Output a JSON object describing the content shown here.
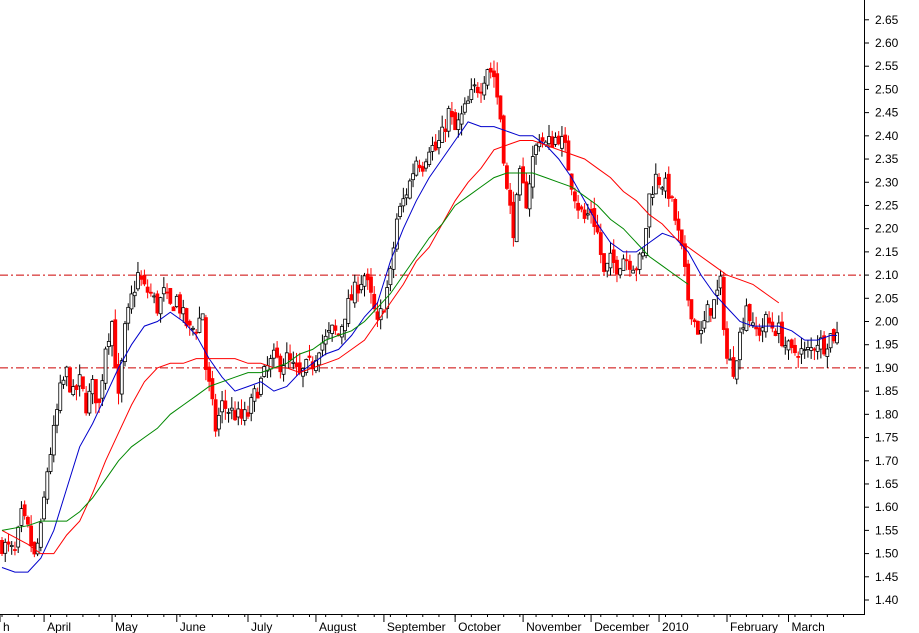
{
  "chart_data": {
    "type": "candlestick",
    "title": "",
    "xlabel": "",
    "ylabel": "",
    "ylim": [
      1.37,
      2.69
    ],
    "y_ticks": [
      1.4,
      1.45,
      1.5,
      1.55,
      1.6,
      1.65,
      1.7,
      1.75,
      1.8,
      1.85,
      1.9,
      1.95,
      2.0,
      2.05,
      2.1,
      2.15,
      2.2,
      2.25,
      2.3,
      2.35,
      2.4,
      2.45,
      2.5,
      2.55,
      2.6,
      2.65
    ],
    "y_tick_labels": [
      "1.40",
      "1.45",
      "1.50",
      "1.55",
      "1.60",
      "1.65",
      "1.70",
      "1.75",
      "1.80",
      "1.85",
      "1.90",
      "1.95",
      "2.00",
      "2.05",
      "2.10",
      "2.15",
      "2.20",
      "2.25",
      "2.30",
      "2.35",
      "2.40",
      "2.45",
      "2.50",
      "2.55",
      "2.60",
      "2.65"
    ],
    "month_labels": [
      {
        "label": "h",
        "day": 0
      },
      {
        "label": "April",
        "day": 13
      },
      {
        "label": "May",
        "day": 34
      },
      {
        "label": "June",
        "day": 54
      },
      {
        "label": "July",
        "day": 76
      },
      {
        "label": "August",
        "day": 97
      },
      {
        "label": "September",
        "day": 118
      },
      {
        "label": "October",
        "day": 140
      },
      {
        "label": "November",
        "day": 161
      },
      {
        "label": "December",
        "day": 182
      },
      {
        "label": "2010",
        "day": 203
      },
      {
        "label": "February",
        "day": 224
      },
      {
        "label": "March",
        "day": 243
      }
    ],
    "x_range": [
      0,
      262
    ],
    "horizontal_lines": [
      {
        "value": 2.1,
        "color": "#cc0000",
        "style": "dash-dot"
      },
      {
        "value": 1.9,
        "color": "#cc0000",
        "style": "dash-dot"
      }
    ],
    "up_color": "#000000",
    "down_color": "#ff0000",
    "price_points": [
      [
        0,
        1.52
      ],
      [
        4,
        1.5
      ],
      [
        6,
        1.58
      ],
      [
        8,
        1.55
      ],
      [
        10,
        1.49
      ],
      [
        12,
        1.55
      ],
      [
        14,
        1.68
      ],
      [
        16,
        1.76
      ],
      [
        18,
        1.85
      ],
      [
        20,
        1.89
      ],
      [
        22,
        1.84
      ],
      [
        24,
        1.87
      ],
      [
        26,
        1.82
      ],
      [
        28,
        1.86
      ],
      [
        30,
        1.82
      ],
      [
        32,
        1.95
      ],
      [
        34,
        2.0
      ],
      [
        36,
        1.83
      ],
      [
        38,
        1.98
      ],
      [
        40,
        2.05
      ],
      [
        42,
        2.1
      ],
      [
        44,
        2.07
      ],
      [
        46,
        2.06
      ],
      [
        48,
        2.03
      ],
      [
        50,
        2.06
      ],
      [
        52,
        2.03
      ],
      [
        54,
        2.05
      ],
      [
        56,
        2.01
      ],
      [
        58,
        1.98
      ],
      [
        60,
        1.99
      ],
      [
        62,
        2.02
      ],
      [
        63,
        1.9
      ],
      [
        64,
        1.86
      ],
      [
        66,
        1.77
      ],
      [
        68,
        1.82
      ],
      [
        70,
        1.81
      ],
      [
        72,
        1.8
      ],
      [
        74,
        1.79
      ],
      [
        76,
        1.8
      ],
      [
        78,
        1.84
      ],
      [
        80,
        1.87
      ],
      [
        82,
        1.9
      ],
      [
        84,
        1.92
      ],
      [
        86,
        1.91
      ],
      [
        88,
        1.92
      ],
      [
        90,
        1.9
      ],
      [
        92,
        1.88
      ],
      [
        94,
        1.9
      ],
      [
        96,
        1.91
      ],
      [
        98,
        1.95
      ],
      [
        100,
        1.96
      ],
      [
        102,
        1.98
      ],
      [
        104,
        1.97
      ],
      [
        106,
        2.02
      ],
      [
        108,
        2.05
      ],
      [
        110,
        2.08
      ],
      [
        112,
        2.1
      ],
      [
        114,
        2.05
      ],
      [
        116,
        1.99
      ],
      [
        118,
        2.04
      ],
      [
        120,
        2.1
      ],
      [
        122,
        2.22
      ],
      [
        124,
        2.26
      ],
      [
        126,
        2.3
      ],
      [
        128,
        2.35
      ],
      [
        130,
        2.34
      ],
      [
        132,
        2.38
      ],
      [
        134,
        2.37
      ],
      [
        136,
        2.4
      ],
      [
        138,
        2.45
      ],
      [
        140,
        2.41
      ],
      [
        142,
        2.44
      ],
      [
        144,
        2.47
      ],
      [
        146,
        2.5
      ],
      [
        148,
        2.51
      ],
      [
        150,
        2.55
      ],
      [
        152,
        2.53
      ],
      [
        154,
        2.44
      ],
      [
        156,
        2.28
      ],
      [
        158,
        2.2
      ],
      [
        160,
        2.31
      ],
      [
        162,
        2.26
      ],
      [
        164,
        2.35
      ],
      [
        166,
        2.4
      ],
      [
        168,
        2.38
      ],
      [
        170,
        2.39
      ],
      [
        172,
        2.4
      ],
      [
        174,
        2.37
      ],
      [
        176,
        2.3
      ],
      [
        178,
        2.25
      ],
      [
        180,
        2.22
      ],
      [
        182,
        2.24
      ],
      [
        184,
        2.19
      ],
      [
        186,
        2.1
      ],
      [
        188,
        2.13
      ],
      [
        190,
        2.12
      ],
      [
        192,
        2.14
      ],
      [
        194,
        2.13
      ],
      [
        196,
        2.12
      ],
      [
        198,
        2.14
      ],
      [
        200,
        2.27
      ],
      [
        202,
        2.31
      ],
      [
        204,
        2.3
      ],
      [
        206,
        2.28
      ],
      [
        208,
        2.22
      ],
      [
        210,
        2.15
      ],
      [
        212,
        2.05
      ],
      [
        214,
        2.0
      ],
      [
        216,
        1.97
      ],
      [
        218,
        2.02
      ],
      [
        220,
        2.04
      ],
      [
        222,
        2.08
      ],
      [
        224,
        1.92
      ],
      [
        226,
        1.9
      ],
      [
        228,
        1.97
      ],
      [
        230,
        2.04
      ],
      [
        232,
        1.98
      ],
      [
        234,
        1.98
      ],
      [
        236,
        2.0
      ],
      [
        238,
        1.99
      ],
      [
        240,
        1.98
      ],
      [
        242,
        1.95
      ],
      [
        244,
        1.93
      ],
      [
        246,
        1.94
      ],
      [
        248,
        1.93
      ],
      [
        250,
        1.94
      ],
      [
        252,
        1.96
      ],
      [
        254,
        1.95
      ],
      [
        256,
        1.97
      ],
      [
        258,
        1.97
      ]
    ],
    "series": [
      {
        "color": "#0000cc",
        "points": [
          [
            0,
            1.47
          ],
          [
            4,
            1.46
          ],
          [
            8,
            1.46
          ],
          [
            12,
            1.49
          ],
          [
            16,
            1.55
          ],
          [
            20,
            1.64
          ],
          [
            24,
            1.73
          ],
          [
            28,
            1.78
          ],
          [
            32,
            1.84
          ],
          [
            36,
            1.9
          ],
          [
            40,
            1.95
          ],
          [
            44,
            1.99
          ],
          [
            48,
            2.0
          ],
          [
            52,
            2.02
          ],
          [
            56,
            2.0
          ],
          [
            60,
            1.97
          ],
          [
            64,
            1.92
          ],
          [
            68,
            1.88
          ],
          [
            72,
            1.85
          ],
          [
            76,
            1.86
          ],
          [
            80,
            1.87
          ],
          [
            84,
            1.85
          ],
          [
            88,
            1.86
          ],
          [
            92,
            1.89
          ],
          [
            96,
            1.91
          ],
          [
            100,
            1.93
          ],
          [
            104,
            1.94
          ],
          [
            108,
            1.97
          ],
          [
            112,
            2.01
          ],
          [
            116,
            2.04
          ],
          [
            120,
            2.13
          ],
          [
            124,
            2.2
          ],
          [
            128,
            2.26
          ],
          [
            132,
            2.31
          ],
          [
            136,
            2.35
          ],
          [
            140,
            2.39
          ],
          [
            144,
            2.43
          ],
          [
            148,
            2.42
          ],
          [
            152,
            2.42
          ],
          [
            156,
            2.41
          ],
          [
            160,
            2.4
          ],
          [
            164,
            2.4
          ],
          [
            168,
            2.38
          ],
          [
            172,
            2.35
          ],
          [
            176,
            2.31
          ],
          [
            180,
            2.26
          ],
          [
            184,
            2.21
          ],
          [
            188,
            2.17
          ],
          [
            192,
            2.15
          ],
          [
            196,
            2.15
          ],
          [
            200,
            2.17
          ],
          [
            204,
            2.19
          ],
          [
            208,
            2.18
          ],
          [
            212,
            2.15
          ],
          [
            216,
            2.1
          ],
          [
            220,
            2.06
          ],
          [
            224,
            2.03
          ],
          [
            228,
            2.0
          ],
          [
            232,
            1.99
          ],
          [
            236,
            1.99
          ],
          [
            240,
            1.99
          ],
          [
            244,
            1.98
          ],
          [
            248,
            1.96
          ],
          [
            252,
            1.96
          ],
          [
            256,
            1.97
          ],
          [
            258,
            1.97
          ]
        ]
      },
      {
        "color": "#ff0000",
        "points": [
          [
            0,
            1.55
          ],
          [
            8,
            1.52
          ],
          [
            12,
            1.5
          ],
          [
            16,
            1.5
          ],
          [
            20,
            1.54
          ],
          [
            24,
            1.57
          ],
          [
            28,
            1.63
          ],
          [
            32,
            1.7
          ],
          [
            36,
            1.76
          ],
          [
            40,
            1.82
          ],
          [
            44,
            1.87
          ],
          [
            48,
            1.9
          ],
          [
            52,
            1.91
          ],
          [
            56,
            1.91
          ],
          [
            60,
            1.92
          ],
          [
            64,
            1.92
          ],
          [
            68,
            1.92
          ],
          [
            72,
            1.92
          ],
          [
            76,
            1.91
          ],
          [
            80,
            1.91
          ],
          [
            84,
            1.9
          ],
          [
            88,
            1.9
          ],
          [
            92,
            1.89
          ],
          [
            96,
            1.9
          ],
          [
            100,
            1.91
          ],
          [
            104,
            1.92
          ],
          [
            108,
            1.94
          ],
          [
            112,
            1.96
          ],
          [
            116,
            2.0
          ],
          [
            120,
            2.04
          ],
          [
            124,
            2.08
          ],
          [
            128,
            2.13
          ],
          [
            132,
            2.16
          ],
          [
            136,
            2.21
          ],
          [
            140,
            2.26
          ],
          [
            144,
            2.3
          ],
          [
            148,
            2.33
          ],
          [
            152,
            2.37
          ],
          [
            156,
            2.38
          ],
          [
            160,
            2.39
          ],
          [
            164,
            2.39
          ],
          [
            168,
            2.38
          ],
          [
            172,
            2.37
          ],
          [
            176,
            2.36
          ],
          [
            180,
            2.35
          ],
          [
            184,
            2.33
          ],
          [
            188,
            2.31
          ],
          [
            192,
            2.28
          ],
          [
            196,
            2.26
          ],
          [
            200,
            2.23
          ],
          [
            204,
            2.21
          ],
          [
            208,
            2.18
          ],
          [
            212,
            2.16
          ],
          [
            216,
            2.14
          ],
          [
            220,
            2.12
          ],
          [
            224,
            2.1
          ],
          [
            228,
            2.09
          ],
          [
            232,
            2.08
          ],
          [
            236,
            2.06
          ],
          [
            240,
            2.04
          ]
        ]
      },
      {
        "color": "#008800",
        "points": [
          [
            0,
            1.55
          ],
          [
            8,
            1.56
          ],
          [
            12,
            1.57
          ],
          [
            16,
            1.57
          ],
          [
            20,
            1.57
          ],
          [
            24,
            1.59
          ],
          [
            28,
            1.62
          ],
          [
            32,
            1.66
          ],
          [
            36,
            1.7
          ],
          [
            40,
            1.73
          ],
          [
            44,
            1.75
          ],
          [
            48,
            1.77
          ],
          [
            52,
            1.8
          ],
          [
            56,
            1.82
          ],
          [
            60,
            1.84
          ],
          [
            64,
            1.86
          ],
          [
            68,
            1.87
          ],
          [
            72,
            1.88
          ],
          [
            76,
            1.89
          ],
          [
            80,
            1.89
          ],
          [
            84,
            1.9
          ],
          [
            88,
            1.91
          ],
          [
            92,
            1.93
          ],
          [
            96,
            1.94
          ],
          [
            100,
            1.96
          ],
          [
            104,
            1.97
          ],
          [
            108,
            1.98
          ],
          [
            112,
            2.0
          ],
          [
            116,
            2.03
          ],
          [
            120,
            2.06
          ],
          [
            124,
            2.1
          ],
          [
            128,
            2.14
          ],
          [
            132,
            2.18
          ],
          [
            136,
            2.21
          ],
          [
            140,
            2.25
          ],
          [
            144,
            2.27
          ],
          [
            148,
            2.29
          ],
          [
            152,
            2.31
          ],
          [
            156,
            2.32
          ],
          [
            160,
            2.32
          ],
          [
            164,
            2.32
          ],
          [
            168,
            2.31
          ],
          [
            172,
            2.3
          ],
          [
            176,
            2.29
          ],
          [
            180,
            2.27
          ],
          [
            184,
            2.25
          ],
          [
            188,
            2.22
          ],
          [
            192,
            2.2
          ],
          [
            196,
            2.17
          ],
          [
            200,
            2.14
          ],
          [
            204,
            2.12
          ],
          [
            208,
            2.1
          ],
          [
            212,
            2.08
          ]
        ]
      }
    ]
  }
}
